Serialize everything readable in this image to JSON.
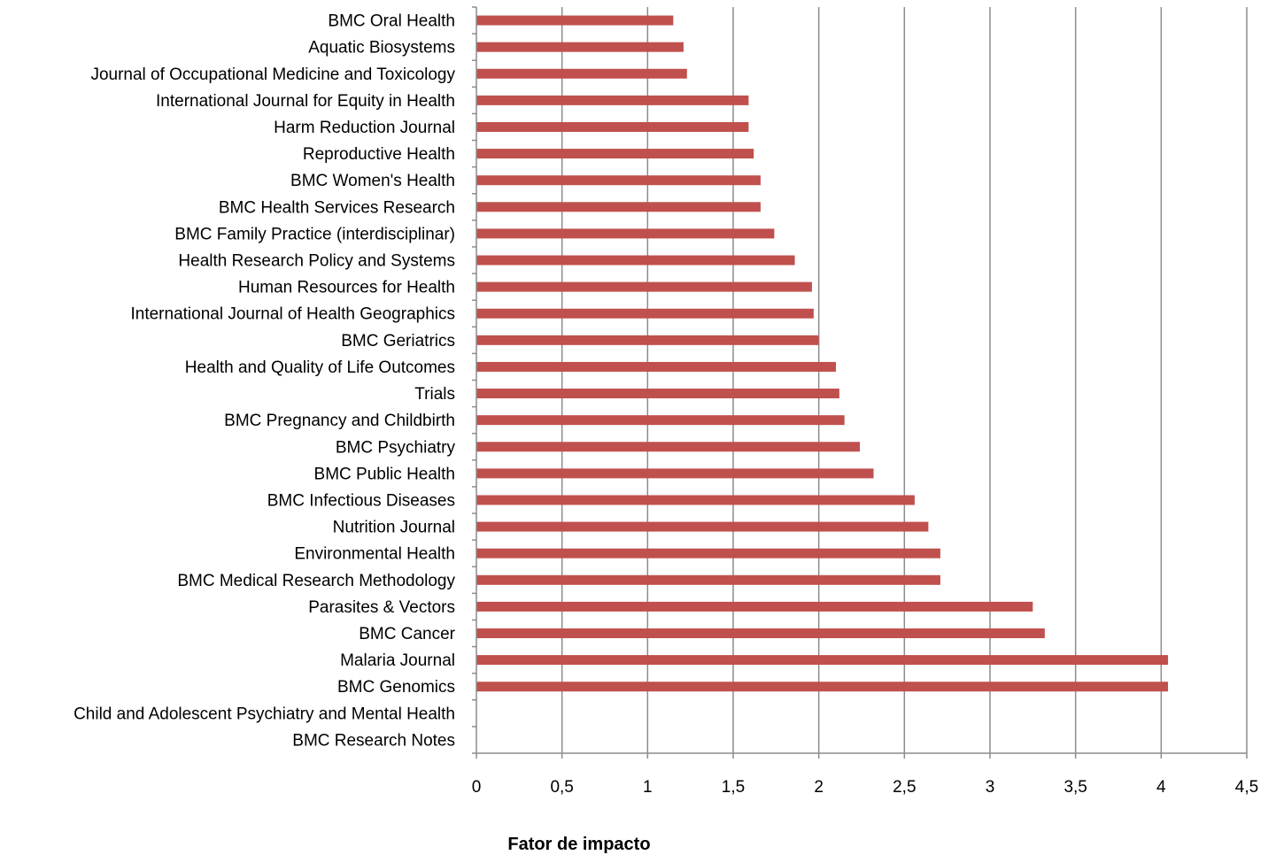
{
  "chart_data": {
    "type": "bar",
    "orientation": "horizontal",
    "xlabel": "Fator de impacto",
    "xlim": [
      0,
      4.5
    ],
    "xticks": [
      0,
      0.5,
      1,
      1.5,
      2,
      2.5,
      3,
      3.5,
      4,
      4.5
    ],
    "xtick_labels": [
      "0",
      "0,5",
      "1",
      "1,5",
      "2",
      "2,5",
      "3",
      "3,5",
      "4",
      "4,5"
    ],
    "grid": "vertical",
    "bar_color": "#c0504d",
    "categories": [
      "BMC Oral Health",
      "Aquatic Biosystems",
      "Journal of Occupational Medicine and Toxicology",
      "International Journal for Equity in Health",
      "Harm Reduction Journal",
      "Reproductive Health",
      "BMC Women's Health",
      "BMC Health Services Research",
      "BMC Family Practice (interdisciplinar)",
      "Health Research Policy and Systems",
      "Human Resources for Health",
      "International Journal of Health Geographics",
      "BMC Geriatrics",
      "Health and Quality of Life Outcomes",
      "Trials",
      "BMC Pregnancy and Childbirth",
      "BMC Psychiatry",
      "BMC Public Health",
      "BMC Infectious Diseases",
      "Nutrition Journal",
      "Environmental Health",
      "BMC Medical Research Methodology",
      "Parasites & Vectors",
      "BMC Cancer",
      "Malaria Journal",
      "BMC Genomics",
      "Child and Adolescent Psychiatry and Mental Health",
      "BMC Research Notes"
    ],
    "values": [
      1.15,
      1.21,
      1.23,
      1.59,
      1.59,
      1.62,
      1.66,
      1.66,
      1.74,
      1.86,
      1.96,
      1.97,
      2.0,
      2.1,
      2.12,
      2.15,
      2.24,
      2.32,
      2.56,
      2.64,
      2.71,
      2.71,
      3.25,
      3.32,
      4.04,
      4.04,
      0,
      0
    ]
  }
}
